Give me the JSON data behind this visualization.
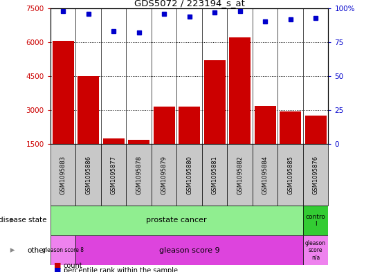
{
  "title": "GDS5072 / 223194_s_at",
  "samples": [
    "GSM1095883",
    "GSM1095886",
    "GSM1095877",
    "GSM1095878",
    "GSM1095879",
    "GSM1095880",
    "GSM1095881",
    "GSM1095882",
    "GSM1095884",
    "GSM1095885",
    "GSM1095876"
  ],
  "counts": [
    6050,
    4500,
    1750,
    1700,
    3150,
    3150,
    5200,
    6200,
    3200,
    2950,
    2750
  ],
  "percentile_ranks": [
    98,
    96,
    83,
    82,
    96,
    94,
    97,
    98,
    90,
    92,
    93
  ],
  "ylim_left": [
    1500,
    7500
  ],
  "ylim_right": [
    0,
    100
  ],
  "yticks_left": [
    1500,
    3000,
    4500,
    6000,
    7500
  ],
  "yticks_right": [
    0,
    25,
    50,
    75,
    100
  ],
  "bar_color": "#CC0000",
  "dot_color": "#0000CC",
  "disease_state_prostate": "prostate cancer",
  "disease_state_control": "contro\nl",
  "other_gleason8": "gleason score 8",
  "other_gleason9": "gleason score 9",
  "other_gleason_na": "gleason\nscore\nn/a",
  "prostate_color": "#90EE90",
  "control_color": "#33CC33",
  "gleason8_color": "#EE82EE",
  "gleason9_color": "#DD44DD",
  "gleason_na_color": "#EE82EE",
  "xtick_bg": "#C8C8C8",
  "grid_yticks": [
    3000,
    4500,
    6000
  ],
  "n_prostate": 10,
  "n_control": 1,
  "n_gleason8": 1,
  "n_gleason9": 9,
  "n_gleason_na": 1
}
